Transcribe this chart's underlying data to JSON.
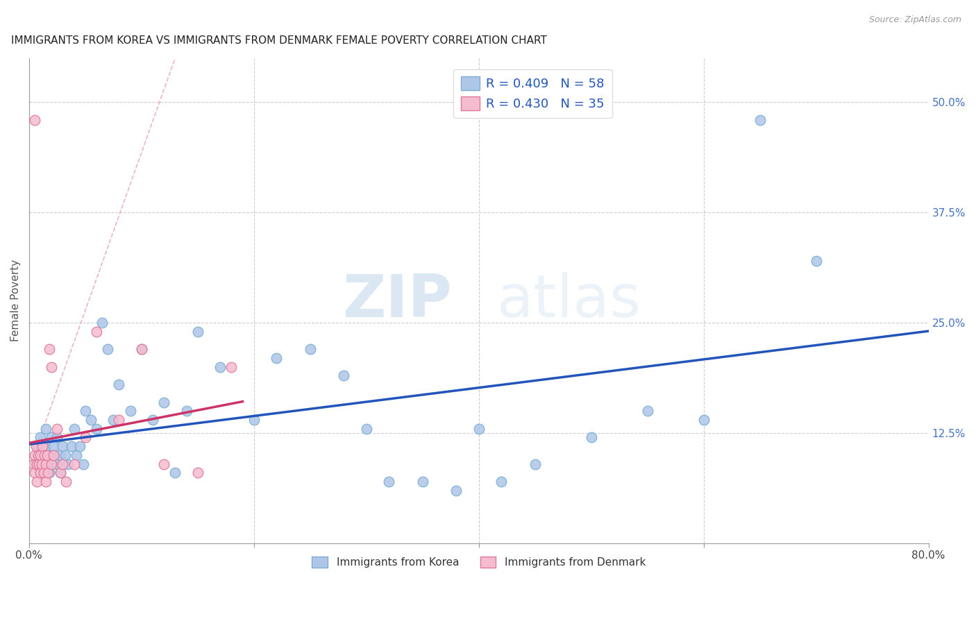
{
  "title": "IMMIGRANTS FROM KOREA VS IMMIGRANTS FROM DENMARK FEMALE POVERTY CORRELATION CHART",
  "source": "Source: ZipAtlas.com",
  "ylabel": "Female Poverty",
  "xlim": [
    0.0,
    0.8
  ],
  "ylim": [
    0.0,
    0.55
  ],
  "korea_color": "#aec6e8",
  "korea_edge": "#7bafd4",
  "denmark_color": "#f5bcd0",
  "denmark_edge": "#e07898",
  "trendline_korea_color": "#2255bb",
  "trendline_denmark_color": "#cc3366",
  "trendline_dashed_color": "#e8a0b8",
  "R_korea": 0.409,
  "N_korea": 58,
  "R_denmark": 0.43,
  "N_denmark": 35,
  "legend_label_korea": "Immigrants from Korea",
  "legend_label_denmark": "Immigrants from Denmark",
  "watermark_zip": "ZIP",
  "watermark_atlas": "atlas",
  "background_color": "#ffffff",
  "grid_color": "#cccccc",
  "korea_x": [
    0.005,
    0.007,
    0.008,
    0.01,
    0.01,
    0.012,
    0.013,
    0.015,
    0.015,
    0.017,
    0.018,
    0.02,
    0.02,
    0.022,
    0.022,
    0.025,
    0.025,
    0.027,
    0.028,
    0.03,
    0.032,
    0.035,
    0.038,
    0.04,
    0.042,
    0.045,
    0.048,
    0.05,
    0.055,
    0.06,
    0.065,
    0.07,
    0.075,
    0.08,
    0.09,
    0.1,
    0.11,
    0.12,
    0.13,
    0.14,
    0.15,
    0.17,
    0.2,
    0.22,
    0.25,
    0.28,
    0.3,
    0.32,
    0.35,
    0.38,
    0.4,
    0.42,
    0.45,
    0.5,
    0.55,
    0.6,
    0.65,
    0.7
  ],
  "korea_y": [
    0.09,
    0.11,
    0.1,
    0.12,
    0.08,
    0.1,
    0.09,
    0.13,
    0.11,
    0.1,
    0.08,
    0.12,
    0.09,
    0.1,
    0.11,
    0.12,
    0.09,
    0.1,
    0.08,
    0.11,
    0.1,
    0.09,
    0.11,
    0.13,
    0.1,
    0.11,
    0.09,
    0.15,
    0.14,
    0.13,
    0.25,
    0.22,
    0.14,
    0.18,
    0.15,
    0.22,
    0.14,
    0.16,
    0.08,
    0.15,
    0.24,
    0.2,
    0.14,
    0.21,
    0.22,
    0.19,
    0.13,
    0.07,
    0.07,
    0.06,
    0.13,
    0.07,
    0.09,
    0.12,
    0.15,
    0.14,
    0.48,
    0.32
  ],
  "denmark_x": [
    0.004,
    0.005,
    0.005,
    0.006,
    0.007,
    0.007,
    0.008,
    0.009,
    0.01,
    0.01,
    0.011,
    0.012,
    0.013,
    0.014,
    0.015,
    0.015,
    0.016,
    0.017,
    0.018,
    0.02,
    0.022,
    0.025,
    0.028,
    0.03,
    0.033,
    0.04,
    0.05,
    0.06,
    0.08,
    0.1,
    0.12,
    0.15,
    0.18,
    0.005,
    0.02
  ],
  "denmark_y": [
    0.09,
    0.1,
    0.08,
    0.11,
    0.09,
    0.07,
    0.1,
    0.09,
    0.1,
    0.08,
    0.09,
    0.11,
    0.08,
    0.1,
    0.09,
    0.07,
    0.1,
    0.08,
    0.22,
    0.09,
    0.1,
    0.13,
    0.08,
    0.09,
    0.07,
    0.09,
    0.12,
    0.24,
    0.14,
    0.22,
    0.09,
    0.08,
    0.2,
    0.48,
    0.2
  ]
}
